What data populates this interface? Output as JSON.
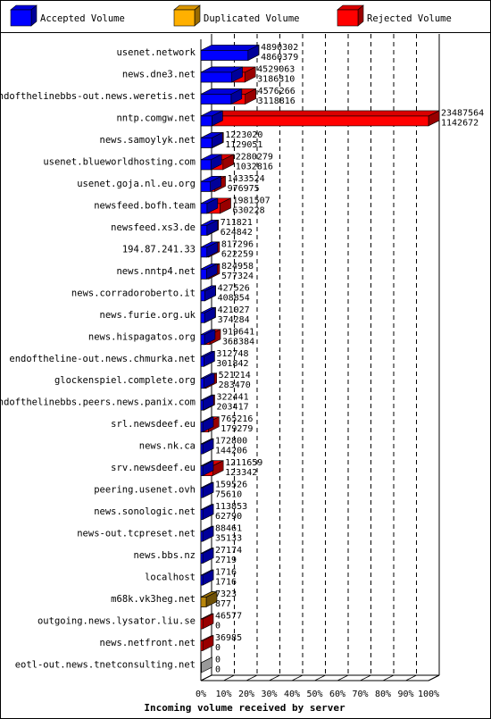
{
  "chart_data": {
    "type": "bar",
    "orientation": "horizontal",
    "xlabel": "Incoming volume received by server",
    "x_ticks": [
      "0%",
      "10%",
      "20%",
      "30%",
      "40%",
      "50%",
      "60%",
      "70%",
      "80%",
      "90%",
      "100%"
    ],
    "legend_position": "top",
    "series": [
      {
        "name": "Accepted Volume",
        "color": "#0000ff"
      },
      {
        "name": "Duplicated Volume",
        "color": "#ffb000"
      },
      {
        "name": "Rejected Volume",
        "color": "#ff0000"
      }
    ],
    "categories": [
      "usenet.network",
      "news.dne3.net",
      "endofthelinebbs-out.news.weretis.net",
      "nntp.comgw.net",
      "news.samoylyk.net",
      "usenet.blueworldhosting.com",
      "usenet.goja.nl.eu.org",
      "newsfeed.bofh.team",
      "newsfeed.xs3.de",
      "194.87.241.33",
      "news.nntp4.net",
      "news.corradoroberto.it",
      "news.furie.org.uk",
      "news.hispagatos.org",
      "endoftheline-out.news.chmurka.net",
      "glockenspiel.complete.org",
      "endofthelinebbs.peers.news.panix.com",
      "srl.newsdeef.eu",
      "news.nk.ca",
      "srv.newsdeef.eu",
      "peering.usenet.ovh",
      "news.sonologic.net",
      "news-out.tcpreset.net",
      "news.bbs.nz",
      "localhost",
      "m68k.vk3heg.net",
      "outgoing.news.lysator.liu.se",
      "news.netfront.net",
      "eotl-out.news.tnetconsulting.net"
    ],
    "total_volume": [
      4890302,
      4529063,
      4576266,
      23487564,
      1223020,
      2280279,
      1433524,
      1981507,
      711821,
      817296,
      824958,
      427526,
      421027,
      919641,
      312748,
      521214,
      322441,
      765216,
      172800,
      1211659,
      159526,
      113853,
      88461,
      27174,
      1716,
      7323,
      46577,
      36985,
      0
    ],
    "accepted_volume": [
      4860379,
      3186310,
      3118816,
      1142672,
      1129051,
      1032816,
      976975,
      630228,
      624842,
      622259,
      577324,
      408854,
      374284,
      363384,
      301842,
      283470,
      203417,
      179279,
      144206,
      123342,
      75610,
      62790,
      35133,
      2719,
      1716,
      877,
      0,
      0,
      0
    ],
    "duplicated_volume": [
      0,
      0,
      0,
      0,
      0,
      0,
      0,
      0,
      0,
      0,
      0,
      0,
      0,
      0,
      0,
      0,
      0,
      0,
      0,
      0,
      0,
      0,
      0,
      0,
      0,
      6446,
      0,
      0,
      0
    ],
    "legend_bar_color": "#000080"
  }
}
